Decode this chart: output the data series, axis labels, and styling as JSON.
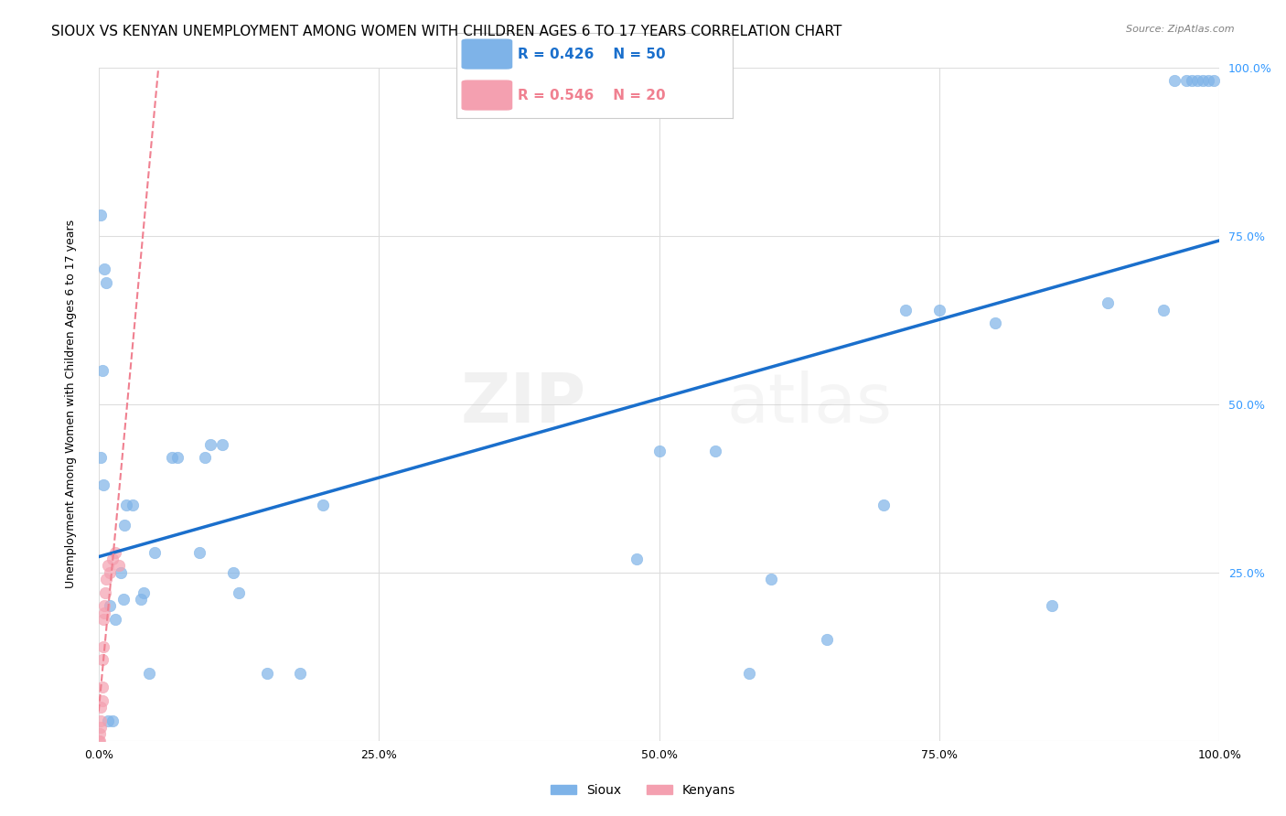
{
  "title": "SIOUX VS KENYAN UNEMPLOYMENT AMONG WOMEN WITH CHILDREN AGES 6 TO 17 YEARS CORRELATION CHART",
  "source": "Source: ZipAtlas.com",
  "ylabel": "Unemployment Among Women with Children Ages 6 to 17 years",
  "watermark_zip": "ZIP",
  "watermark_atlas": "atlas",
  "legend_sioux_R": "R = 0.426",
  "legend_sioux_N": "N = 50",
  "legend_kenyan_R": "R = 0.546",
  "legend_kenyan_N": "N = 20",
  "sioux_color": "#7eb3e8",
  "kenyan_color": "#f4a0b0",
  "sioux_line_color": "#1a6fcc",
  "kenyan_line_color": "#f08090",
  "sioux_x": [
    0.002,
    0.005,
    0.007,
    0.003,
    0.002,
    0.004,
    0.008,
    0.012,
    0.01,
    0.015,
    0.02,
    0.022,
    0.023,
    0.025,
    0.03,
    0.038,
    0.04,
    0.045,
    0.05,
    0.065,
    0.07,
    0.09,
    0.095,
    0.1,
    0.11,
    0.12,
    0.125,
    0.15,
    0.18,
    0.2,
    0.48,
    0.5,
    0.55,
    0.58,
    0.6,
    0.65,
    0.7,
    0.72,
    0.75,
    0.8,
    0.85,
    0.9,
    0.95,
    0.96,
    0.97,
    0.975,
    0.98,
    0.985,
    0.99,
    0.995
  ],
  "sioux_y": [
    0.78,
    0.7,
    0.68,
    0.55,
    0.42,
    0.38,
    0.03,
    0.03,
    0.2,
    0.18,
    0.25,
    0.21,
    0.32,
    0.35,
    0.35,
    0.21,
    0.22,
    0.1,
    0.28,
    0.42,
    0.42,
    0.28,
    0.42,
    0.44,
    0.44,
    0.25,
    0.22,
    0.1,
    0.1,
    0.35,
    0.27,
    0.43,
    0.43,
    0.1,
    0.24,
    0.15,
    0.35,
    0.64,
    0.64,
    0.62,
    0.2,
    0.65,
    0.64,
    0.98,
    0.98,
    0.98,
    0.98,
    0.98,
    0.98,
    0.98
  ],
  "kenyan_x": [
    0.0,
    0.001,
    0.001,
    0.002,
    0.002,
    0.002,
    0.003,
    0.003,
    0.003,
    0.004,
    0.004,
    0.005,
    0.005,
    0.006,
    0.007,
    0.008,
    0.01,
    0.012,
    0.015,
    0.018
  ],
  "kenyan_y": [
    0.0,
    0.0,
    0.01,
    0.02,
    0.03,
    0.05,
    0.06,
    0.08,
    0.12,
    0.14,
    0.18,
    0.19,
    0.2,
    0.22,
    0.24,
    0.26,
    0.25,
    0.27,
    0.28,
    0.26
  ],
  "xlim": [
    0.0,
    1.0
  ],
  "ylim": [
    0.0,
    1.0
  ],
  "title_fontsize": 11,
  "axis_fontsize": 9,
  "marker_size": 80,
  "background_color": "#ffffff",
  "grid_color": "#dddddd"
}
